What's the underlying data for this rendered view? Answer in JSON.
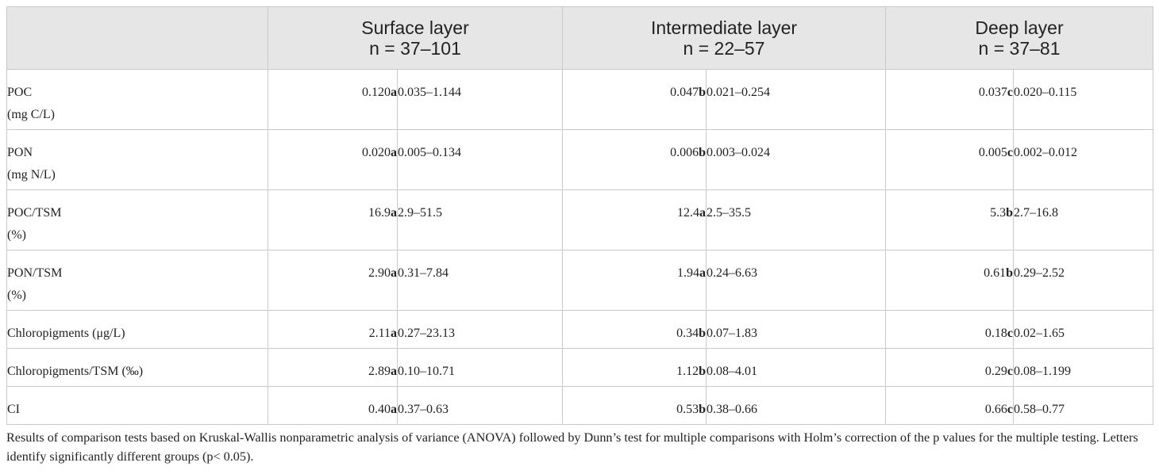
{
  "header": {
    "surface": {
      "line1": "Surface layer",
      "line2": "n = 37–101"
    },
    "intermediate": {
      "line1": "Intermediate layer",
      "line2": "n = 22–57"
    },
    "deep": {
      "line1": "Deep layer",
      "line2": "n = 37–81"
    }
  },
  "rows": [
    {
      "label1": "POC",
      "label2": "(mg C/L)",
      "surface": {
        "median": "0.120",
        "letter": "a",
        "range": "0.035–1.144"
      },
      "intermediate": {
        "median": "0.047",
        "letter": "b",
        "range": "0.021–0.254"
      },
      "deep": {
        "median": "0.037",
        "letter": "c",
        "range": "0.020–0.115"
      }
    },
    {
      "label1": "PON",
      "label2": "(mg N/L)",
      "surface": {
        "median": "0.020",
        "letter": "a",
        "range": "0.005–0.134"
      },
      "intermediate": {
        "median": "0.006",
        "letter": "b",
        "range": "0.003–0.024"
      },
      "deep": {
        "median": "0.005",
        "letter": "c",
        "range": "0.002–0.012"
      }
    },
    {
      "label1": "POC/TSM",
      "label2": "(%)",
      "surface": {
        "median": "16.9",
        "letter": "a",
        "range": "2.9–51.5"
      },
      "intermediate": {
        "median": "12.4",
        "letter": "a",
        "range": "2.5–35.5"
      },
      "deep": {
        "median": "5.3",
        "letter": "b",
        "range": "2.7–16.8"
      }
    },
    {
      "label1": "PON/TSM",
      "label2": "(%)",
      "surface": {
        "median": "2.90",
        "letter": "a",
        "range": "0.31–7.84"
      },
      "intermediate": {
        "median": "1.94",
        "letter": "a",
        "range": "0.24–6.63"
      },
      "deep": {
        "median": "0.61",
        "letter": "b",
        "range": "0.29–2.52"
      }
    },
    {
      "label1": "Chloropigments (μg/L)",
      "label2": "",
      "surface": {
        "median": "2.11",
        "letter": "a",
        "range": "0.27–23.13"
      },
      "intermediate": {
        "median": "0.34",
        "letter": "b",
        "range": "0.07–1.83"
      },
      "deep": {
        "median": "0.18",
        "letter": "c",
        "range": "0.02–1.65"
      }
    },
    {
      "label1": "Chloropigments/TSM (‰)",
      "label2": "",
      "surface": {
        "median": "2.89",
        "letter": "a",
        "range": "0.10–10.71"
      },
      "intermediate": {
        "median": "1.12",
        "letter": "b",
        "range": "0.08–4.01"
      },
      "deep": {
        "median": "0.29",
        "letter": "c",
        "range": "0.08–1.199"
      }
    },
    {
      "label1": "CI",
      "label2": "",
      "surface": {
        "median": "0.40",
        "letter": "a",
        "range": "0.37–0.63"
      },
      "intermediate": {
        "median": "0.53",
        "letter": "b",
        "range": "0.38–0.66"
      },
      "deep": {
        "median": "0.66",
        "letter": "c",
        "range": "0.58–0.77"
      }
    }
  ],
  "footnote": "Results of comparison tests based on Kruskal-Wallis nonparametric analysis of variance (ANOVA) followed by Dunn’s test for multiple comparisons with Holm’s correction of the p values for the multiple testing. Letters identify significantly different groups (p< 0.05).",
  "colors": {
    "header_bg": "#e6e6e6",
    "border": "#c9c9c9",
    "text": "#222222"
  }
}
